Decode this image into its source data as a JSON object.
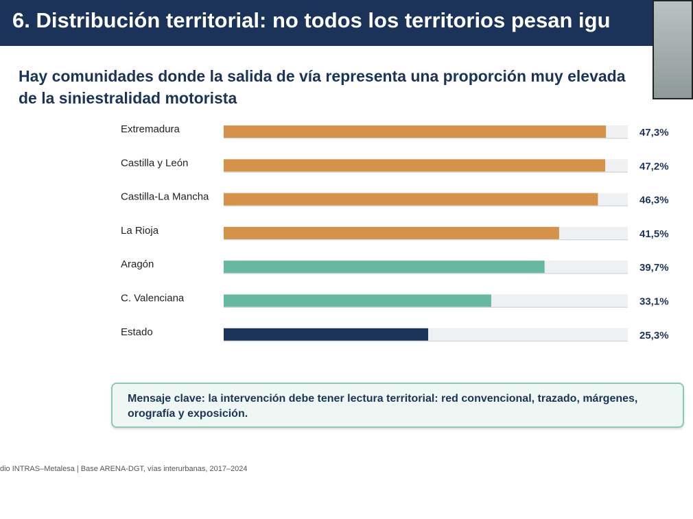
{
  "header": {
    "title": "6. Distribución territorial: no todos los territorios pesan igu"
  },
  "chart_data": {
    "type": "bar",
    "orientation": "horizontal",
    "title": "Hay comunidades donde la salida de vía representa una proporción muy elevada de la siniestralidad motorista",
    "categories": [
      "Extremadura",
      "Castilla y León",
      "Castilla-La Mancha",
      "La Rioja",
      "Aragón",
      "C. Valenciana",
      "Estado"
    ],
    "values": [
      47.3,
      47.2,
      46.3,
      41.5,
      39.7,
      33.1,
      25.3
    ],
    "value_labels": [
      "47,3%",
      "47,2%",
      "46,3%",
      "41,5%",
      "39,7%",
      "33,1%",
      "25,3%"
    ],
    "colors": [
      "#d4924a",
      "#d4924a",
      "#d4924a",
      "#d4924a",
      "#66b8a0",
      "#66b8a0",
      "#1b3358"
    ],
    "xlim": [
      0,
      50
    ]
  },
  "key_message": "Mensaje clave: la intervención debe tener lectura territorial: red convencional, trazado, márgenes, orografía y exposición.",
  "footer": "dio INTRAS–Metalesa | Base ARENA-DGT, vías interurbanas, 2017–2024"
}
